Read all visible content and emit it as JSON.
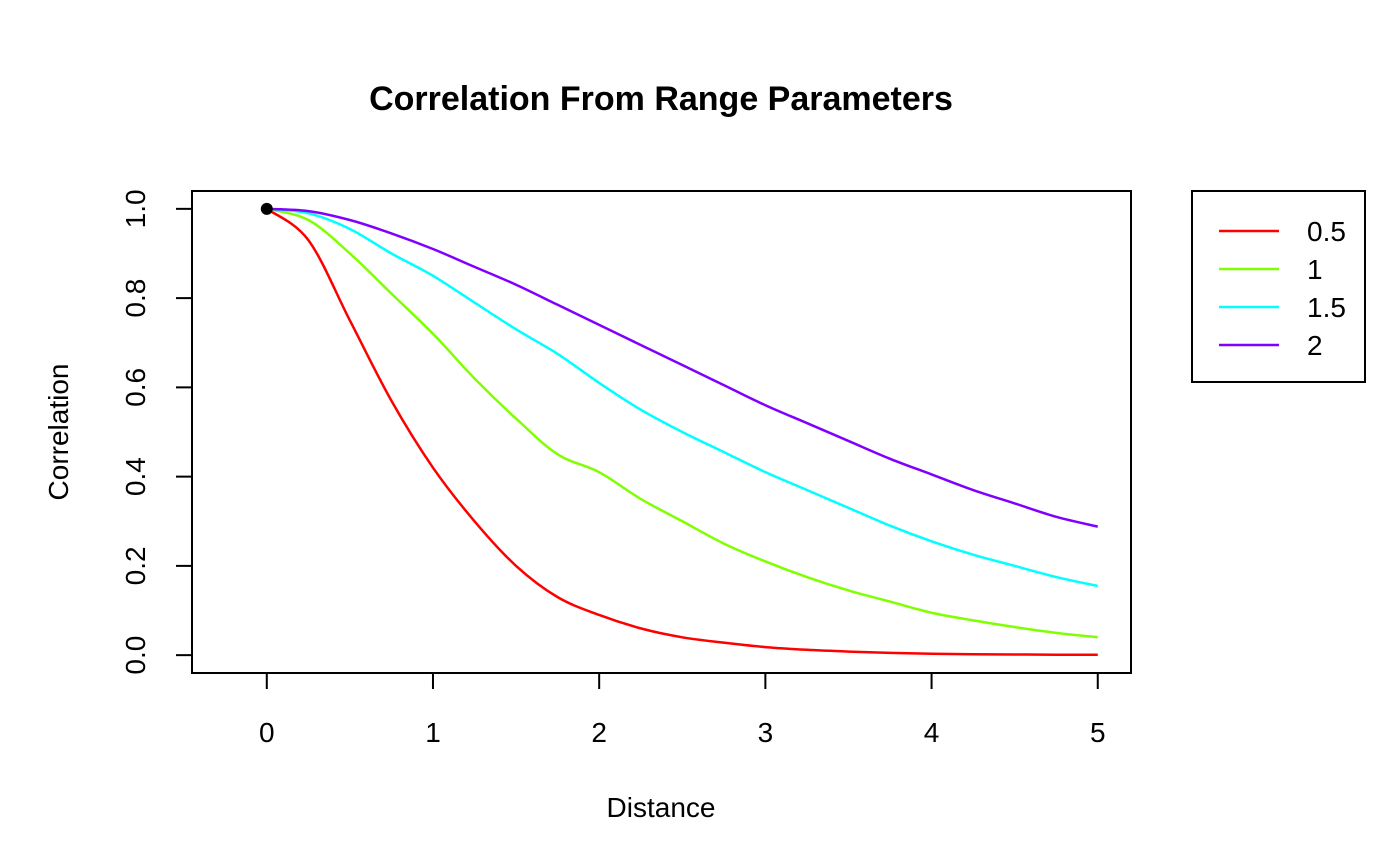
{
  "chart_data": {
    "type": "line",
    "title": "Correlation From Range Parameters",
    "xlabel": "Distance",
    "ylabel": "Correlation",
    "xlim": [
      -0.45,
      5.2
    ],
    "ylim": [
      -0.04,
      1.04
    ],
    "xticks": [
      0,
      1,
      2,
      3,
      4,
      5
    ],
    "xtick_labels": [
      "0",
      "1",
      "2",
      "3",
      "4",
      "5"
    ],
    "yticks": [
      0,
      0.2,
      0.4,
      0.6,
      0.8,
      1.0
    ],
    "ytick_labels": [
      "0.0",
      "0.2",
      "0.4",
      "0.6",
      "0.8",
      "1.0"
    ],
    "grid": false,
    "legend_position": "outside-right-top",
    "x": [
      0,
      0.25,
      0.5,
      0.75,
      1.0,
      1.25,
      1.5,
      1.75,
      2.0,
      2.25,
      2.5,
      2.75,
      3.0,
      3.25,
      3.5,
      3.75,
      4.0,
      4.25,
      4.5,
      4.75,
      5.0
    ],
    "series": [
      {
        "name": "0.5",
        "color": "#ff0000",
        "values": [
          1.0,
          0.93,
          0.75,
          0.57,
          0.42,
          0.3,
          0.2,
          0.13,
          0.09,
          0.06,
          0.04,
          0.028,
          0.018,
          0.012,
          0.008,
          0.005,
          0.003,
          0.002,
          0.0015,
          0.001,
          0.0008
        ]
      },
      {
        "name": "1",
        "color": "#80ff00",
        "values": [
          1.0,
          0.975,
          0.9,
          0.81,
          0.72,
          0.62,
          0.53,
          0.45,
          0.41,
          0.35,
          0.3,
          0.25,
          0.21,
          0.175,
          0.145,
          0.12,
          0.095,
          0.078,
          0.063,
          0.05,
          0.04
        ]
      },
      {
        "name": "1.5",
        "color": "#00ffff",
        "values": [
          1.0,
          0.99,
          0.955,
          0.9,
          0.85,
          0.79,
          0.73,
          0.675,
          0.61,
          0.55,
          0.5,
          0.455,
          0.41,
          0.37,
          0.33,
          0.29,
          0.255,
          0.225,
          0.2,
          0.175,
          0.155
        ]
      },
      {
        "name": "2",
        "color": "#8000ff",
        "values": [
          1.0,
          0.995,
          0.975,
          0.945,
          0.91,
          0.87,
          0.83,
          0.785,
          0.74,
          0.695,
          0.65,
          0.605,
          0.56,
          0.52,
          0.48,
          0.44,
          0.405,
          0.37,
          0.34,
          0.31,
          0.288
        ]
      }
    ],
    "points": [
      {
        "x": 0,
        "y": 1.0,
        "color": "#000000"
      }
    ]
  }
}
